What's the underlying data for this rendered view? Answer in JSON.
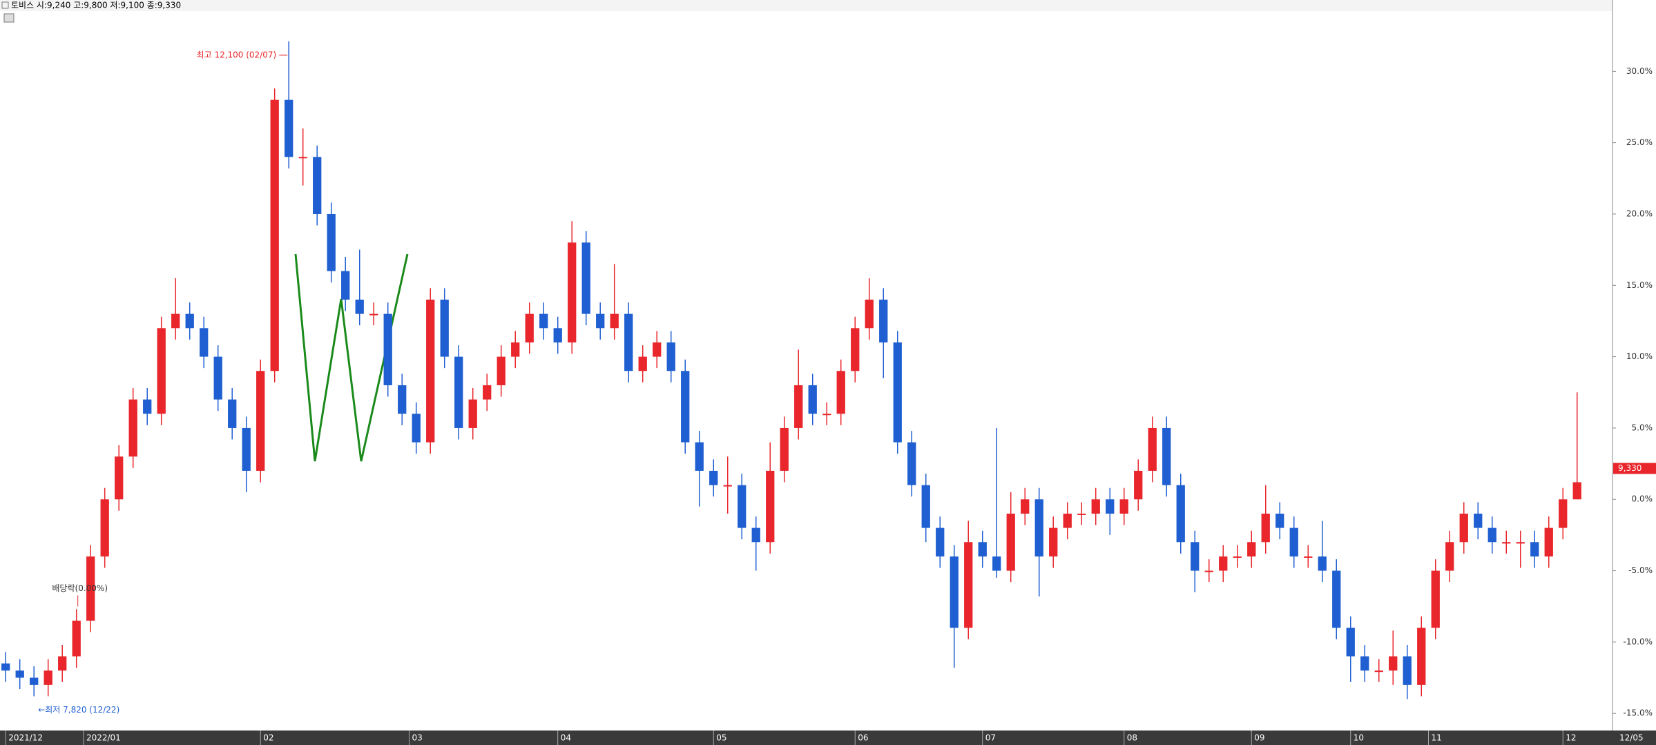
{
  "chart_data": {
    "type": "candlestick",
    "title": "토비스 시:9,240 고:9,800 저:9,100 종:9,330",
    "annotations": {
      "high": "최고 12,100 (02/07)",
      "low": "←최저 7,820 (12/22)",
      "dividend": "배당락(0.00%)",
      "price": "9,330",
      "date_end": "12/05"
    },
    "up_color": "#e8262b",
    "down_color": "#1f5fd1",
    "ylim": [
      -16.2,
      35
    ],
    "yticks": [
      {
        "value": 30,
        "label": "30.0%"
      },
      {
        "value": 25,
        "label": "25.0%"
      },
      {
        "value": 20,
        "label": "20.0%"
      },
      {
        "value": 15,
        "label": "15.0%"
      },
      {
        "value": 10,
        "label": "10.0%"
      },
      {
        "value": 5,
        "label": "5.0%"
      },
      {
        "value": 0,
        "label": "0.0%"
      },
      {
        "value": -5,
        "label": "-5.0%"
      },
      {
        "value": -10,
        "label": "-10.0%"
      },
      {
        "value": -15,
        "label": "-15.0%"
      }
    ],
    "xlim": [
      -0.4,
      113.5
    ],
    "xticks": [
      {
        "value": 0,
        "label": "2021/12"
      },
      {
        "value": 5.5,
        "label": "2022/01"
      },
      {
        "value": 18,
        "label": "02"
      },
      {
        "value": 28.5,
        "label": "03"
      },
      {
        "value": 39,
        "label": "04"
      },
      {
        "value": 50,
        "label": "05"
      },
      {
        "value": 60,
        "label": "06"
      },
      {
        "value": 69,
        "label": "07"
      },
      {
        "value": 79,
        "label": "08"
      },
      {
        "value": 88,
        "label": "09"
      },
      {
        "value": 95,
        "label": "10"
      },
      {
        "value": 100.5,
        "label": "11"
      },
      {
        "value": 110,
        "label": "12"
      }
    ],
    "ohlc": [
      [
        -11.5,
        -10.7,
        -12.8,
        -12
      ],
      [
        -12,
        -11.2,
        -13.3,
        -12.5
      ],
      [
        -12.5,
        -11.7,
        -13.8,
        -13
      ],
      [
        -13,
        -11.2,
        -13.8,
        -12
      ],
      [
        -12,
        -10.2,
        -12.8,
        -11
      ],
      [
        -11,
        -7.7,
        -11.8,
        -8.5
      ],
      [
        -8.5,
        -3.2,
        -9.3,
        -4
      ],
      [
        -4,
        0.8,
        -4.8,
        0
      ],
      [
        0,
        3.8,
        -0.8,
        3
      ],
      [
        3,
        7.8,
        2.2,
        7
      ],
      [
        7,
        7.8,
        5.2,
        6
      ],
      [
        6,
        12.8,
        5.2,
        12
      ],
      [
        12,
        15.5,
        11.2,
        13
      ],
      [
        13,
        13.8,
        11.2,
        12
      ],
      [
        12,
        12.8,
        9.2,
        10
      ],
      [
        10,
        10.8,
        6.2,
        7
      ],
      [
        7,
        7.8,
        4.2,
        5
      ],
      [
        5,
        5.8,
        0.5,
        2
      ],
      [
        2,
        9.8,
        1.2,
        9
      ],
      [
        9,
        28.8,
        8.2,
        28
      ],
      [
        28,
        32.1,
        23.2,
        24
      ],
      [
        24,
        26,
        22,
        24
      ],
      [
        24,
        24.8,
        19.2,
        20
      ],
      [
        20,
        20.8,
        15.2,
        16
      ],
      [
        16,
        17,
        13.2,
        14
      ],
      [
        14,
        17.5,
        12.2,
        13
      ],
      [
        13,
        13.8,
        12.2,
        13
      ],
      [
        13,
        13.8,
        7.2,
        8
      ],
      [
        8,
        8.8,
        5.2,
        6
      ],
      [
        6,
        6.8,
        3.2,
        4
      ],
      [
        4,
        14.8,
        3.2,
        14
      ],
      [
        14,
        14.8,
        9.2,
        10
      ],
      [
        10,
        10.8,
        4.2,
        5
      ],
      [
        5,
        7.8,
        4.2,
        7
      ],
      [
        7,
        8.8,
        6.2,
        8
      ],
      [
        8,
        10.8,
        7.2,
        10
      ],
      [
        10,
        11.8,
        9.2,
        11
      ],
      [
        11,
        13.8,
        10.2,
        13
      ],
      [
        13,
        13.8,
        11.2,
        12
      ],
      [
        12,
        12.8,
        10.2,
        11
      ],
      [
        11,
        19.5,
        10.2,
        18
      ],
      [
        18,
        18.8,
        12.2,
        13
      ],
      [
        13,
        13.8,
        11.2,
        12
      ],
      [
        12,
        16.5,
        11.2,
        13
      ],
      [
        13,
        13.8,
        8.2,
        9
      ],
      [
        9,
        10.8,
        8.2,
        10
      ],
      [
        10,
        11.8,
        9.2,
        11
      ],
      [
        11,
        11.8,
        8.2,
        9
      ],
      [
        9,
        9.8,
        3.2,
        4
      ],
      [
        4,
        4.8,
        -0.5,
        2
      ],
      [
        2,
        2.8,
        0.2,
        1
      ],
      [
        1,
        3,
        -1,
        1
      ],
      [
        1,
        1.8,
        -2.8,
        -2
      ],
      [
        -2,
        -1.2,
        -5,
        -3
      ],
      [
        -3,
        4,
        -3.8,
        2
      ],
      [
        2,
        5.8,
        1.2,
        5
      ],
      [
        5,
        10.5,
        4.2,
        8
      ],
      [
        8,
        8.8,
        5.2,
        6
      ],
      [
        6,
        6.8,
        5.2,
        6
      ],
      [
        6,
        9.8,
        5.2,
        9
      ],
      [
        9,
        12.8,
        8.2,
        12
      ],
      [
        12,
        15.5,
        11.2,
        14
      ],
      [
        14,
        14.8,
        8.5,
        11
      ],
      [
        11,
        11.8,
        3.2,
        4
      ],
      [
        4,
        4.8,
        0.2,
        1
      ],
      [
        1,
        1.8,
        -3,
        -2
      ],
      [
        -2,
        -1.2,
        -4.8,
        -4
      ],
      [
        -4,
        -3.2,
        -11.8,
        -9
      ],
      [
        -9,
        -1.5,
        -9.8,
        -3
      ],
      [
        -3,
        -2.2,
        -4.8,
        -4
      ],
      [
        -4,
        5,
        -5.5,
        -5
      ],
      [
        -5,
        0.5,
        -5.8,
        -1
      ],
      [
        -1,
        0.8,
        -1.8,
        0
      ],
      [
        0,
        0.8,
        -6.8,
        -4
      ],
      [
        -4,
        -1.2,
        -4.8,
        -2
      ],
      [
        -2,
        -0.2,
        -2.8,
        -1
      ],
      [
        -1,
        -0.2,
        -1.8,
        -1
      ],
      [
        -1,
        0.8,
        -1.8,
        0
      ],
      [
        0,
        0.8,
        -2.5,
        -1
      ],
      [
        -1,
        0.8,
        -1.8,
        0
      ],
      [
        0,
        2.8,
        -0.8,
        2
      ],
      [
        2,
        5.8,
        1.2,
        5
      ],
      [
        5,
        5.8,
        0.2,
        1
      ],
      [
        1,
        1.8,
        -3.8,
        -3
      ],
      [
        -3,
        -2.2,
        -6.5,
        -5
      ],
      [
        -5,
        -4.2,
        -5.8,
        -5
      ],
      [
        -5,
        -3.2,
        -5.8,
        -4
      ],
      [
        -4,
        -3.2,
        -4.8,
        -4
      ],
      [
        -4,
        -2.2,
        -4.8,
        -3
      ],
      [
        -3,
        1,
        -3.8,
        -1
      ],
      [
        -1,
        -0.2,
        -2.8,
        -2
      ],
      [
        -2,
        -1.2,
        -4.8,
        -4
      ],
      [
        -4,
        -3.2,
        -4.8,
        -4
      ],
      [
        -4,
        -1.5,
        -5.8,
        -5
      ],
      [
        -5,
        -4.2,
        -9.8,
        -9
      ],
      [
        -9,
        -8.2,
        -12.8,
        -11
      ],
      [
        -11,
        -10.2,
        -12.8,
        -12
      ],
      [
        -12,
        -11.2,
        -12.8,
        -12
      ],
      [
        -12,
        -9.2,
        -13,
        -11
      ],
      [
        -11,
        -10.2,
        -14,
        -13
      ],
      [
        -13,
        -8.2,
        -13.8,
        -9
      ],
      [
        -9,
        -4.2,
        -9.8,
        -5
      ],
      [
        -5,
        -2.2,
        -5.8,
        -3
      ],
      [
        -3,
        -0.2,
        -3.8,
        -1
      ],
      [
        -1,
        -0.2,
        -2.8,
        -2
      ],
      [
        -2,
        -1.2,
        -3.8,
        -3
      ],
      [
        -3,
        -2.2,
        -3.8,
        -3
      ],
      [
        -3,
        -2.2,
        -4.8,
        -3
      ],
      [
        -3,
        -2.2,
        -4.8,
        -4
      ],
      [
        -4,
        -1.2,
        -4.8,
        -2
      ],
      [
        -2,
        0.8,
        -2.8,
        0
      ],
      [
        0,
        7.5,
        0,
        1.2
      ]
    ]
  }
}
